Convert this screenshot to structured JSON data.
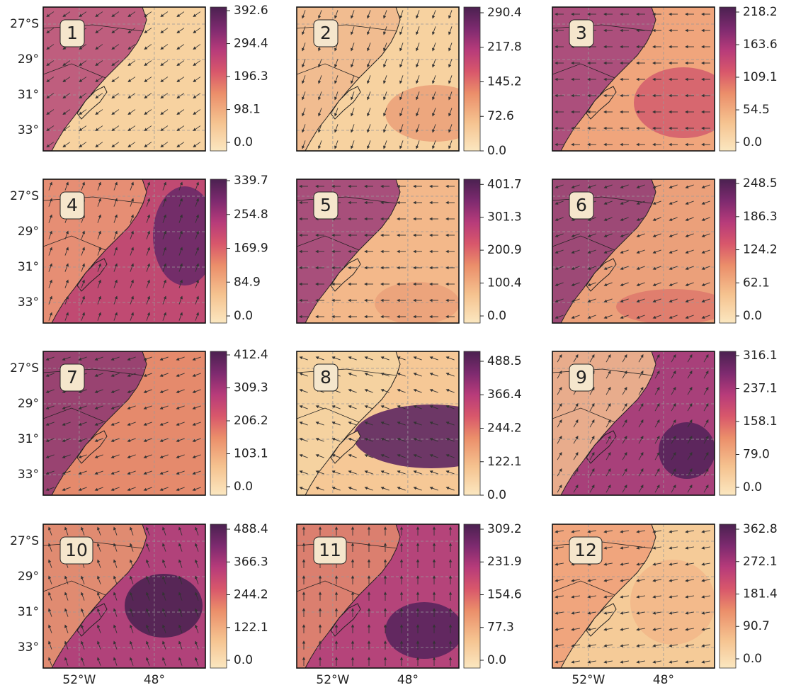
{
  "lat_ticks": [
    {
      "value": -27,
      "label": "27°S"
    },
    {
      "value": -29,
      "label": "29°"
    },
    {
      "value": -31,
      "label": "31°"
    },
    {
      "value": -33,
      "label": "33°"
    }
  ],
  "lon_ticks": [
    {
      "value": -52,
      "label": "52°W"
    },
    {
      "value": -48,
      "label": "48°"
    }
  ],
  "lat_range": [
    -34.16,
    -26.04
  ],
  "lon_range": [
    -53.92,
    -45.28
  ],
  "panels": [
    {
      "label": "1",
      "colorbar_lim": [
        -25.3,
        403.2
      ],
      "colorbar_ticks": [
        {
          "value": 0,
          "label": "0.0"
        },
        98.1,
        196.3,
        294.4,
        392.6
      ]
    },
    {
      "label": "2",
      "colorbar_lim": [
        0,
        302.3
      ],
      "colorbar_ticks": [
        {
          "value": 0,
          "label": "0.0"
        },
        72.6,
        145.2,
        217.8,
        290.4
      ]
    },
    {
      "label": "3",
      "colorbar_lim": [
        -14.2,
        226.5
      ],
      "colorbar_ticks": [
        {
          "value": 0,
          "label": "0.0"
        },
        54.5,
        109.1,
        163.6,
        218.2
      ]
    },
    {
      "label": "4",
      "colorbar_lim": [
        -17.8,
        343.3
      ],
      "colorbar_ticks": [
        {
          "value": 0,
          "label": "0.0"
        },
        84.9,
        169.9,
        254.8,
        339.7
      ]
    },
    {
      "label": "5",
      "colorbar_lim": [
        -21.6,
        417.5
      ],
      "colorbar_ticks": [
        {
          "value": 0,
          "label": "0.0"
        },
        100.4,
        200.9,
        301.3,
        401.7
      ]
    },
    {
      "label": "6",
      "colorbar_lim": [
        -13.3,
        256.5
      ],
      "colorbar_ticks": [
        {
          "value": 0,
          "label": "0.0"
        },
        62.1,
        124.2,
        186.3,
        248.5
      ]
    },
    {
      "label": "7",
      "colorbar_lim": [
        -26.6,
        423.5
      ],
      "colorbar_ticks": [
        {
          "value": 0,
          "label": "0.0"
        },
        103.1,
        206.2,
        309.3,
        412.4
      ]
    },
    {
      "label": "8",
      "colorbar_lim": [
        0,
        524.7
      ],
      "colorbar_ticks": [
        {
          "value": 0,
          "label": "0.0"
        },
        122.1,
        244.2,
        366.4,
        488.5
      ]
    },
    {
      "label": "9",
      "colorbar_lim": [
        -18.7,
        326.3
      ],
      "colorbar_ticks": [
        {
          "value": 0,
          "label": "0.0"
        },
        {
          "value": 79,
          "label": "79.0"
        },
        158.1,
        237.1,
        316.1
      ]
    },
    {
      "label": "10",
      "colorbar_lim": [
        -29,
        506.9
      ],
      "colorbar_ticks": [
        {
          "value": 0,
          "label": "0.0"
        },
        122.1,
        244.2,
        366.3,
        488.4
      ]
    },
    {
      "label": "11",
      "colorbar_lim": [
        -18.4,
        320.9
      ],
      "colorbar_ticks": [
        {
          "value": 0,
          "label": "0.0"
        },
        77.3,
        154.6,
        231.9,
        309.2
      ]
    },
    {
      "label": "12",
      "colorbar_lim": [
        -25.8,
        376.7
      ],
      "colorbar_ticks": [
        {
          "value": 0,
          "label": "0.0"
        },
        90.7,
        181.4,
        272.1,
        362.8
      ]
    }
  ]
}
